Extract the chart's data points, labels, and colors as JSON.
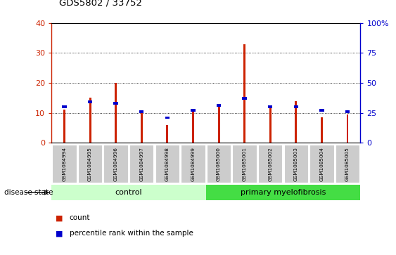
{
  "title": "GDS5802 / 33752",
  "samples": [
    "GSM1084994",
    "GSM1084995",
    "GSM1084996",
    "GSM1084997",
    "GSM1084998",
    "GSM1084999",
    "GSM1085000",
    "GSM1085001",
    "GSM1085002",
    "GSM1085003",
    "GSM1085004",
    "GSM1085005"
  ],
  "count_values": [
    11,
    15,
    20,
    10.5,
    6,
    10.5,
    13,
    33,
    12,
    14,
    8.5,
    9.5
  ],
  "percentile_values": [
    30,
    34,
    33,
    26,
    21,
    27,
    31,
    37,
    30,
    30,
    27,
    26
  ],
  "control_count": 6,
  "primary_count": 6,
  "control_label": "control",
  "primary_label": "primary myelofibrosis",
  "disease_state_label": "disease state",
  "count_label": "count",
  "percentile_label": "percentile rank within the sample",
  "left_yticks": [
    0,
    10,
    20,
    30,
    40
  ],
  "right_yticks": [
    0,
    25,
    50,
    75,
    100
  ],
  "left_ylim": [
    0,
    40
  ],
  "right_ylim": [
    0,
    100
  ],
  "bar_color": "#cc2200",
  "percentile_color": "#0000cc",
  "control_bg": "#ccffcc",
  "primary_bg": "#44dd44",
  "tick_bg": "#cccccc",
  "bar_width": 0.08
}
